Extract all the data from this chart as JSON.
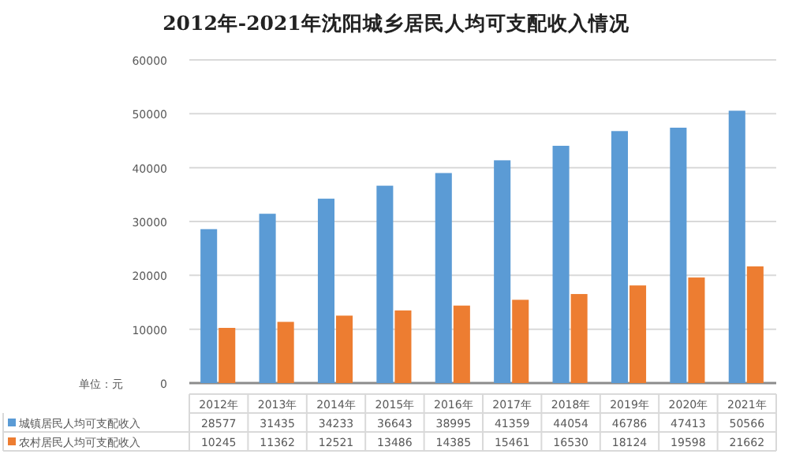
{
  "chart_data": {
    "type": "bar",
    "title": "2012年-2021年沈阳城乡居民人均可支配收入情况",
    "categories": [
      "2012年",
      "2013年",
      "2014年",
      "2015年",
      "2016年",
      "2017年",
      "2018年",
      "2019年",
      "2020年",
      "2021年"
    ],
    "series": [
      {
        "name": "城镇居民人均可支配收入",
        "color": "#5b9bd5",
        "values": [
          28577,
          31435,
          34233,
          36643,
          38995,
          41359,
          44054,
          46786,
          47413,
          50566
        ]
      },
      {
        "name": "农村居民人均可支配收入",
        "color": "#ed7d31",
        "values": [
          10245,
          11362,
          12521,
          13486,
          14385,
          15461,
          16530,
          18124,
          19598,
          21662
        ]
      }
    ],
    "ylim": [
      0,
      60000
    ],
    "yticks": [
      0,
      10000,
      20000,
      30000,
      40000,
      50000,
      60000
    ],
    "grid": "y",
    "legend": "bottom left",
    "data_labels": true,
    "annotations": [
      "单位：元"
    ]
  }
}
